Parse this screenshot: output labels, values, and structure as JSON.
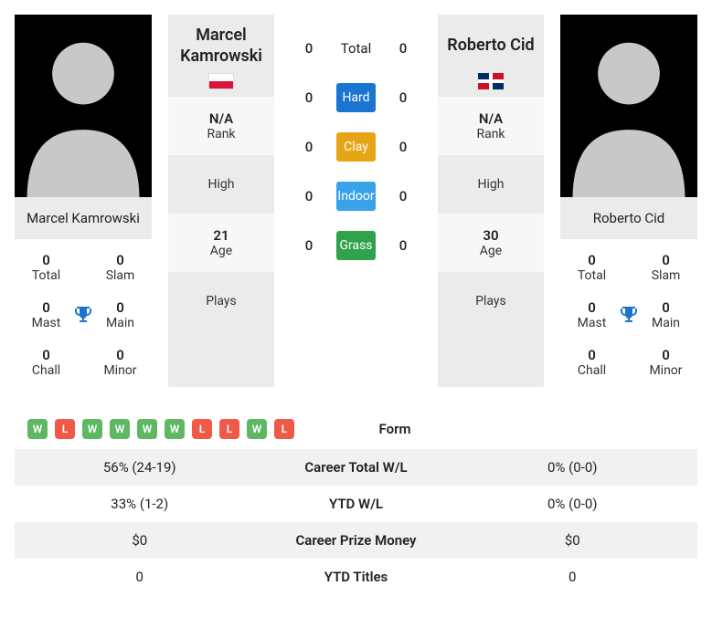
{
  "surfaces": {
    "hard": {
      "label": "Hard",
      "color": "#1b75d0"
    },
    "clay": {
      "label": "Clay",
      "color": "#e6a417"
    },
    "indoor": {
      "label": "Indoor",
      "color": "#3aa2ea"
    },
    "grass": {
      "label": "Grass",
      "color": "#2fa24a"
    }
  },
  "h2h_totals_label": "Total",
  "h2h": {
    "total": {
      "p1": "0",
      "p2": "0"
    },
    "hard": {
      "p1": "0",
      "p2": "0"
    },
    "clay": {
      "p1": "0",
      "p2": "0"
    },
    "indoor": {
      "p1": "0",
      "p2": "0"
    },
    "grass": {
      "p1": "0",
      "p2": "0"
    }
  },
  "info_labels": {
    "rank": "Rank",
    "high": "High",
    "age": "Age",
    "plays": "Plays"
  },
  "title_labels": {
    "total": "Total",
    "slam": "Slam",
    "mast": "Mast",
    "main": "Main",
    "chall": "Chall",
    "minor": "Minor"
  },
  "player1": {
    "name": "Marcel Kamrowski",
    "country_code": "POL",
    "rank": "N/A",
    "high": "",
    "age": "21",
    "plays": "",
    "titles": {
      "total": "0",
      "slam": "0",
      "mast": "0",
      "main": "0",
      "chall": "0",
      "minor": "0"
    },
    "form": [
      "W",
      "L",
      "W",
      "W",
      "W",
      "W",
      "L",
      "L",
      "W",
      "L"
    ]
  },
  "player2": {
    "name": "Roberto Cid",
    "country_code": "DOM",
    "rank": "N/A",
    "high": "",
    "age": "30",
    "plays": "",
    "titles": {
      "total": "0",
      "slam": "0",
      "mast": "0",
      "main": "0",
      "chall": "0",
      "minor": "0"
    },
    "form": []
  },
  "comparison": [
    {
      "label": "Form"
    },
    {
      "label": "Career Total W/L",
      "p1": "56% (24-19)",
      "p2": "0% (0-0)"
    },
    {
      "label": "YTD W/L",
      "p1": "33% (1-2)",
      "p2": "0% (0-0)"
    },
    {
      "label": "Career Prize Money",
      "p1": "$0",
      "p2": "$0"
    },
    {
      "label": "YTD Titles",
      "p1": "0",
      "p2": "0"
    }
  ]
}
